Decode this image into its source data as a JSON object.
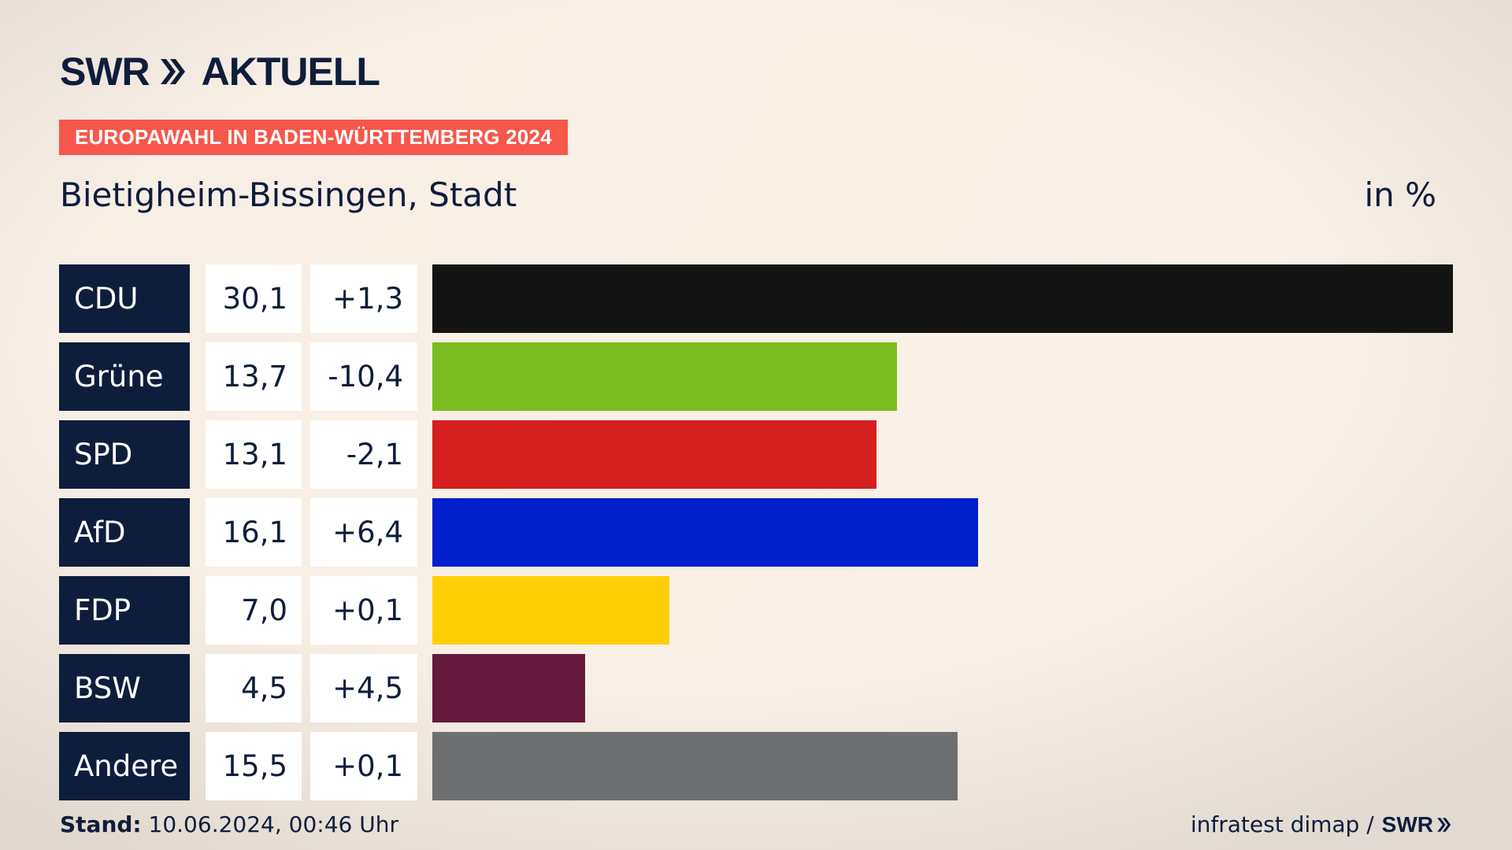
{
  "header": {
    "logo_text": "SWR",
    "logo_suffix": "AKTUELL",
    "logo_chevron": "double-chevron-icon",
    "banner": "EUROPAWAHL IN BADEN-WÜRTTEMBERG 2024",
    "subtitle": "Bietigheim-Bissingen, Stadt",
    "unit": "in %"
  },
  "colors": {
    "navy": "#0f1d3c",
    "banner": "#f7574b"
  },
  "chart_data": {
    "type": "bar",
    "categories": [
      "CDU",
      "Grüne",
      "SPD",
      "AfD",
      "FDP",
      "BSW",
      "Andere"
    ],
    "values": [
      30.1,
      13.7,
      13.1,
      16.1,
      7.0,
      4.5,
      15.5
    ],
    "values_label": [
      "30,1",
      "13,7",
      "13,1",
      "16,1",
      "7,0",
      "4,5",
      "15,5"
    ],
    "changes_label": [
      "+1,3",
      "-10,4",
      "-2,1",
      "+6,4",
      "+0,1",
      "+4,5",
      "+0,1"
    ],
    "colors": [
      "#141414",
      "#79bd1e",
      "#d61f1f",
      "#001fcc",
      "#ffcf06",
      "#661a3d",
      "#6e6f71"
    ],
    "xlim": [
      0,
      30.1
    ],
    "orientation": "horizontal"
  },
  "footer": {
    "stand_label": "Stand:",
    "stand_value": "10.06.2024, 00:46 Uhr",
    "source": "infratest dimap /",
    "source_logo": "SWR"
  }
}
